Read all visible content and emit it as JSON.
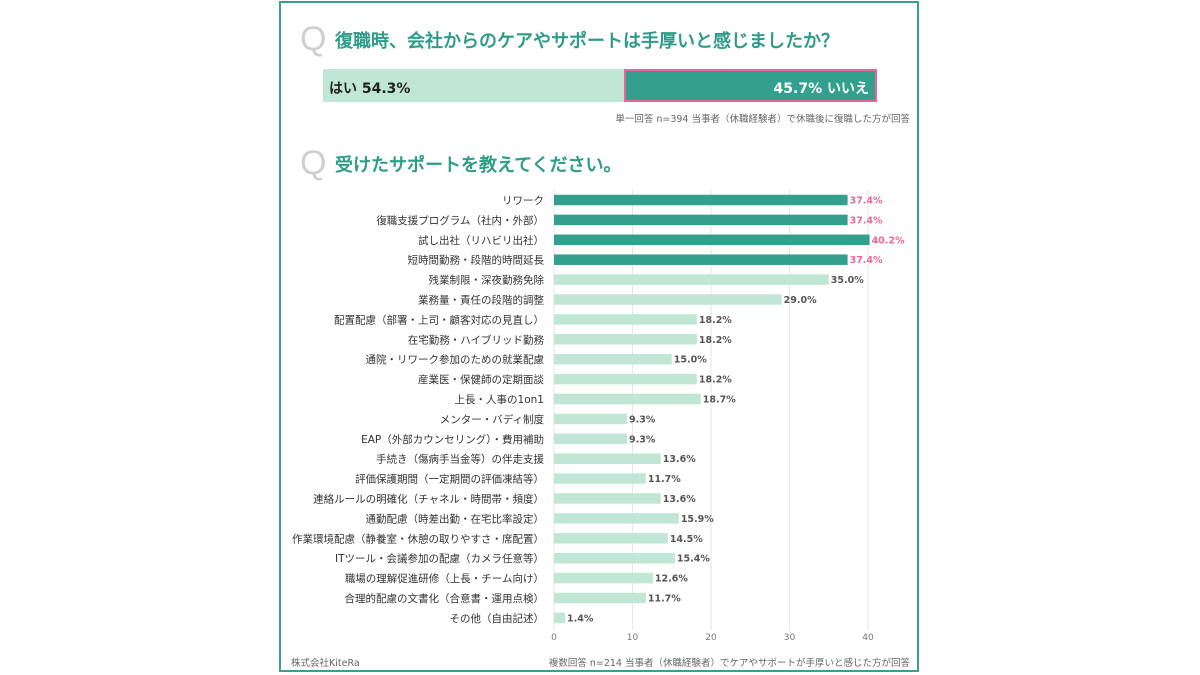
{
  "q1": {
    "mark": "Q",
    "title": "復職時、会社からのケアやサポートは手厚いと感じましたか？",
    "yes_label": "はい 54.3%",
    "no_label": "45.7% いいえ",
    "yes_value": 54.3,
    "no_value": 45.7,
    "note": "単一回答 n=394 当事者（休職経験者）で休職後に復職した方が回答"
  },
  "q2": {
    "mark": "Q",
    "title": "受けたサポートを教えてください。",
    "note": "複数回答 n=214 当事者（休職経験者）でケアやサポートが手厚いと感じた方が回答"
  },
  "brand": "株式会社KiteRa",
  "colors": {
    "frame": "#3aa08e",
    "accent": "#2e9c88",
    "highlight_bar": "#33a08e",
    "normal_bar": "#c0e7d5",
    "highlight_label": "#e8679a",
    "normal_label": "#555555"
  },
  "chart_data": {
    "type": "bar",
    "orientation": "horizontal",
    "title": "受けたサポートを教えてください。",
    "xlabel": "",
    "ylabel": "",
    "xlim": [
      0,
      40
    ],
    "x_ticks": [
      "0",
      "10",
      "20",
      "30",
      "40"
    ],
    "grid": true,
    "categories": [
      "リワーク",
      "復職支援プログラム（社内・外部）",
      "試し出社（リハビリ出社）",
      "短時間勤務・段階的時間延長",
      "残業制限・深夜勤務免除",
      "業務量・責任の段階的調整",
      "配置配慮（部署・上司・顧客対応の見直し）",
      "在宅勤務・ハイブリッド勤務",
      "通院・リワーク参加のための就業配慮",
      "産業医・保健師の定期面談",
      "上長・人事の1on1",
      "メンター・バディ制度",
      "EAP（外部カウンセリング）・費用補助",
      "手続き（傷病手当金等）の伴走支援",
      "評価保護期間（一定期間の評価凍結等）",
      "連絡ルールの明確化（チャネル・時間帯・頻度）",
      "通勤配慮（時差出勤・在宅比率設定）",
      "作業環境配慮（静養室・休憩の取りやすさ・席配置）",
      "ITツール・会議参加の配慮（カメラ任意等）",
      "職場の理解促進研修（上長・チーム向け）",
      "合理的配慮の文書化（合意書・運用点検）",
      "その他（自由記述）"
    ],
    "values": [
      37.4,
      37.4,
      40.2,
      37.4,
      35.0,
      29.0,
      18.2,
      18.2,
      15.0,
      18.2,
      18.7,
      9.3,
      9.3,
      13.6,
      11.7,
      13.6,
      15.9,
      14.5,
      15.4,
      12.6,
      11.7,
      1.4
    ],
    "value_labels": [
      "37.4%",
      "37.4%",
      "40.2%",
      "37.4%",
      "35.0%",
      "29.0%",
      "18.2%",
      "18.2%",
      "15.0%",
      "18.2%",
      "18.7%",
      "9.3%",
      "9.3%",
      "13.6%",
      "11.7%",
      "13.6%",
      "15.9%",
      "14.5%",
      "15.4%",
      "12.6%",
      "11.7%",
      "1.4%"
    ],
    "highlighted": [
      true,
      true,
      true,
      true,
      false,
      false,
      false,
      false,
      false,
      false,
      false,
      false,
      false,
      false,
      false,
      false,
      false,
      false,
      false,
      false,
      false,
      false
    ]
  }
}
